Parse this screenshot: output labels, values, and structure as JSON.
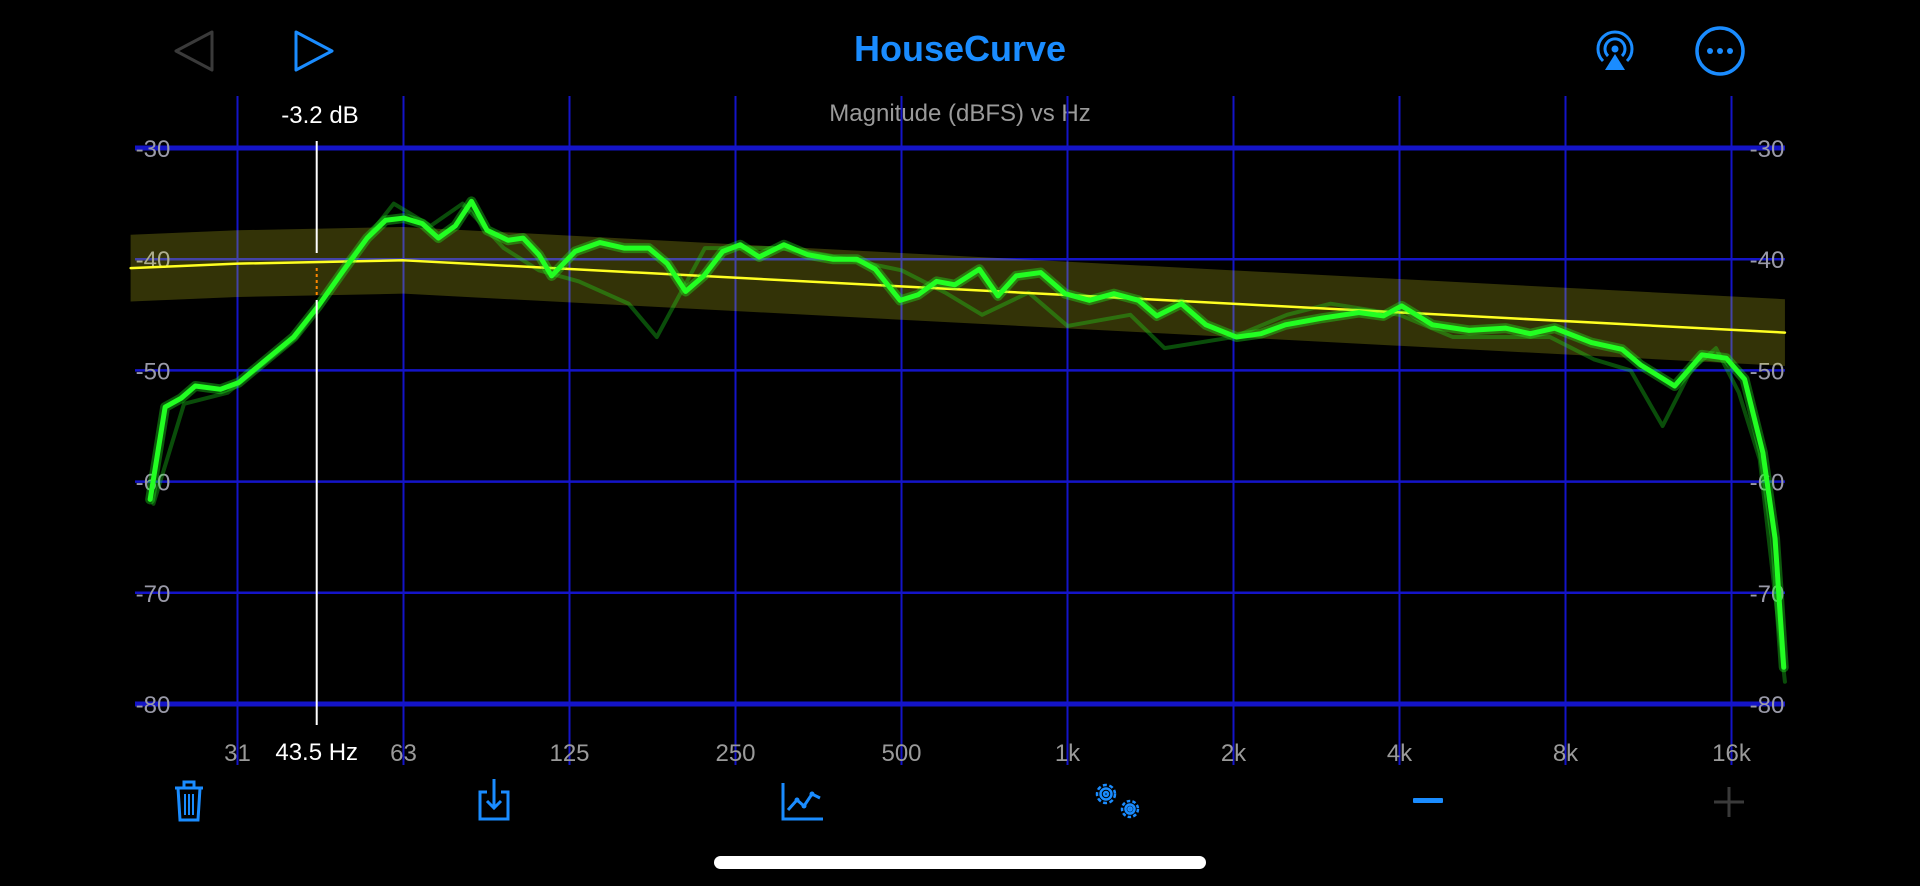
{
  "header": {
    "title": "HouseCurve",
    "back_icon": "triangle-left-icon",
    "play_icon": "triangle-right-icon",
    "airplay_icon": "airplay-icon",
    "more_icon": "ellipsis-circle-icon"
  },
  "colors": {
    "accent": "#1a8cff",
    "grid": "#1414c8",
    "measurement": "#22ff22",
    "target": "#ffff22",
    "target_band": "#3a3a00",
    "disabled": "#3a3a3a"
  },
  "cursor": {
    "value_label": "-3.2 dB",
    "freq_label": "43.5 Hz",
    "freq": 43.5
  },
  "toolbar": {
    "trash_icon": "trash-icon",
    "export_icon": "download-box-icon",
    "chart_icon": "line-chart-icon",
    "settings_icon": "gears-icon",
    "minus_icon": "minus-icon",
    "plus_icon": "plus-icon"
  },
  "chart_data": {
    "type": "line",
    "title": "Magnitude (dBFS) vs Hz",
    "x_scale": "log",
    "xlim": [
      20,
      20000
    ],
    "ylim": [
      -85,
      -30
    ],
    "grid": true,
    "x_ticks": [
      31.25,
      62.5,
      125,
      250,
      500,
      1000,
      2000,
      4000,
      8000,
      16000
    ],
    "x_tick_labels": [
      "31",
      "63",
      "125",
      "250",
      "500",
      "1k",
      "2k",
      "4k",
      "8k",
      "16k"
    ],
    "y_ticks": [
      -30,
      -40,
      -50,
      -60,
      -70,
      -80
    ],
    "y_tick_labels": [
      "-30",
      "-40",
      "-50",
      "-60",
      "-70",
      "-80"
    ],
    "target_band_db": 3,
    "series": [
      {
        "role": "target",
        "points": [
          [
            20,
            -40.8
          ],
          [
            31.25,
            -40.4
          ],
          [
            62.5,
            -40.1
          ],
          [
            20000,
            -46.6
          ]
        ]
      },
      {
        "role": "previous-measurement",
        "points": [
          [
            22,
            -62
          ],
          [
            25,
            -53
          ],
          [
            30,
            -52
          ],
          [
            40,
            -47
          ],
          [
            50,
            -40
          ],
          [
            60,
            -35
          ],
          [
            70,
            -37
          ],
          [
            80,
            -35
          ],
          [
            95,
            -39
          ],
          [
            110,
            -41
          ],
          [
            130,
            -42
          ],
          [
            160,
            -44
          ],
          [
            180,
            -47
          ],
          [
            220,
            -39
          ],
          [
            300,
            -39
          ],
          [
            400,
            -40
          ],
          [
            500,
            -41
          ],
          [
            600,
            -43
          ],
          [
            700,
            -45
          ],
          [
            850,
            -43
          ],
          [
            1000,
            -46
          ],
          [
            1300,
            -45
          ],
          [
            1500,
            -48
          ],
          [
            2000,
            -47
          ],
          [
            2500,
            -45
          ],
          [
            3000,
            -44
          ],
          [
            4000,
            -45
          ],
          [
            5000,
            -47
          ],
          [
            6000,
            -47
          ],
          [
            7500,
            -47
          ],
          [
            9000,
            -49
          ],
          [
            10500,
            -50
          ],
          [
            12000,
            -55
          ],
          [
            13500,
            -50
          ],
          [
            15000,
            -48
          ],
          [
            16500,
            -52
          ],
          [
            18000,
            -58
          ],
          [
            20000,
            -78
          ]
        ]
      },
      {
        "role": "measurement",
        "points": [
          [
            21.7,
            -61.6
          ],
          [
            23.1,
            -53.3
          ],
          [
            24.7,
            -52.5
          ],
          [
            26.2,
            -51.4
          ],
          [
            29.1,
            -51.7
          ],
          [
            31.4,
            -51.1
          ],
          [
            35.7,
            -48.8
          ],
          [
            39.5,
            -47
          ],
          [
            43.8,
            -44.2
          ],
          [
            48.5,
            -41.1
          ],
          [
            53.7,
            -38.1
          ],
          [
            58,
            -36.5
          ],
          [
            62.6,
            -36.3
          ],
          [
            67.6,
            -36.8
          ],
          [
            72.3,
            -38.1
          ],
          [
            77.6,
            -37
          ],
          [
            83,
            -34.8
          ],
          [
            88.6,
            -37.4
          ],
          [
            96.7,
            -38.3
          ],
          [
            103,
            -38.1
          ],
          [
            110,
            -39.6
          ],
          [
            116,
            -41.5
          ],
          [
            128,
            -39.3
          ],
          [
            142,
            -38.5
          ],
          [
            157,
            -39
          ],
          [
            174,
            -39
          ],
          [
            188,
            -40.4
          ],
          [
            203,
            -42.9
          ],
          [
            219,
            -41.5
          ],
          [
            237,
            -39.3
          ],
          [
            255,
            -38.7
          ],
          [
            276,
            -39.8
          ],
          [
            306,
            -38.7
          ],
          [
            338,
            -39.6
          ],
          [
            375,
            -40
          ],
          [
            415,
            -40
          ],
          [
            448,
            -40.9
          ],
          [
            497,
            -43.7
          ],
          [
            536,
            -43.2
          ],
          [
            579,
            -42
          ],
          [
            625,
            -42.3
          ],
          [
            692,
            -40.9
          ],
          [
            748,
            -43.3
          ],
          [
            807,
            -41.5
          ],
          [
            894,
            -41.2
          ],
          [
            990,
            -43.1
          ],
          [
            1096,
            -43.7
          ],
          [
            1214,
            -43.1
          ],
          [
            1345,
            -43.7
          ],
          [
            1452,
            -45.1
          ],
          [
            1609,
            -44
          ],
          [
            1782,
            -45.9
          ],
          [
            2025,
            -47
          ],
          [
            2243,
            -46.7
          ],
          [
            2484,
            -45.9
          ],
          [
            2896,
            -45.3
          ],
          [
            3376,
            -44.8
          ],
          [
            3740,
            -45.1
          ],
          [
            4036,
            -44.2
          ],
          [
            4588,
            -45.9
          ],
          [
            5348,
            -46.4
          ],
          [
            6235,
            -46.2
          ],
          [
            6906,
            -46.7
          ],
          [
            7647,
            -46.2
          ],
          [
            8916,
            -47.5
          ],
          [
            10130,
            -48.1
          ],
          [
            10940,
            -49.5
          ],
          [
            12620,
            -51.4
          ],
          [
            14130,
            -48.6
          ],
          [
            15650,
            -48.9
          ],
          [
            16900,
            -50.8
          ],
          [
            18240,
            -57.4
          ],
          [
            19190,
            -65.1
          ],
          [
            19900,
            -76.7
          ]
        ]
      }
    ]
  }
}
